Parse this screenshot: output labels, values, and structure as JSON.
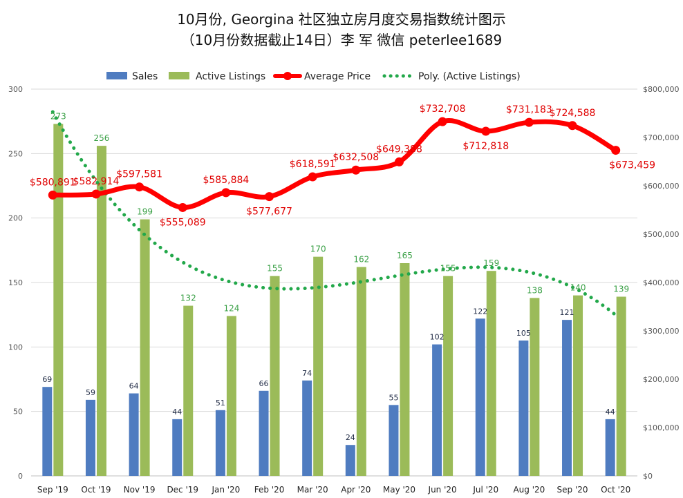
{
  "title_line1": "10月份, Georgina 社区独立房月度交易指数统计图示",
  "title_line2": "（10月份数据截止14日）李 军  微信  peterlee1689",
  "legend": {
    "sales": "Sales",
    "active": "Active Listings",
    "price": "Average Price",
    "poly": "Poly. (Active Listings)"
  },
  "colors": {
    "sales": "#4f7cc0",
    "active": "#9bbb59",
    "price": "#ff0000",
    "poly": "#22a84a",
    "grid": "#d9d9d9"
  },
  "chart_data": {
    "type": "bar",
    "categories": [
      "Sep '19",
      "Oct '19",
      "Nov '19",
      "Dec '19",
      "Jan '20",
      "Feb '20",
      "Mar '20",
      "Apr '20",
      "May '20",
      "Jun '20",
      "Jul '20",
      "Aug '20",
      "Sep '20",
      "Oct '20"
    ],
    "series": [
      {
        "name": "Sales",
        "type": "bar",
        "axis": "left",
        "values": [
          69,
          59,
          64,
          44,
          51,
          66,
          74,
          24,
          55,
          102,
          122,
          105,
          121,
          44
        ]
      },
      {
        "name": "Active Listings",
        "type": "bar",
        "axis": "left",
        "values": [
          273,
          256,
          199,
          132,
          124,
          155,
          170,
          162,
          165,
          155,
          159,
          138,
          140,
          139
        ]
      },
      {
        "name": "Average Price",
        "type": "line",
        "axis": "right",
        "values": [
          580891,
          582914,
          597581,
          555089,
          585884,
          577677,
          618591,
          632508,
          649388,
          732708,
          712818,
          731183,
          724588,
          673459
        ]
      },
      {
        "name": "Poly. (Active Listings)",
        "type": "line",
        "style": "dotted",
        "axis": "left",
        "trendline_of": "Active Listings"
      }
    ],
    "price_labels": [
      "$580,891",
      "$582,914",
      "$597,581",
      "$555,089",
      "$585,884",
      "$577,677",
      "$618,591",
      "$632,508",
      "$649,388",
      "$732,708",
      "$712,818",
      "$731,183",
      "$724,588",
      "$673,459"
    ],
    "left_axis": {
      "ylim": [
        0,
        300
      ],
      "ticks": [
        "0",
        "50",
        "100",
        "150",
        "200",
        "250",
        "300"
      ]
    },
    "right_axis": {
      "ylim": [
        0,
        800000
      ],
      "ticks": [
        "$0",
        "$100,000",
        "$200,000",
        "$300,000",
        "$400,000",
        "$500,000",
        "$600,000",
        "$700,000",
        "$800,000"
      ]
    },
    "grid": true,
    "legend_position": "top"
  }
}
